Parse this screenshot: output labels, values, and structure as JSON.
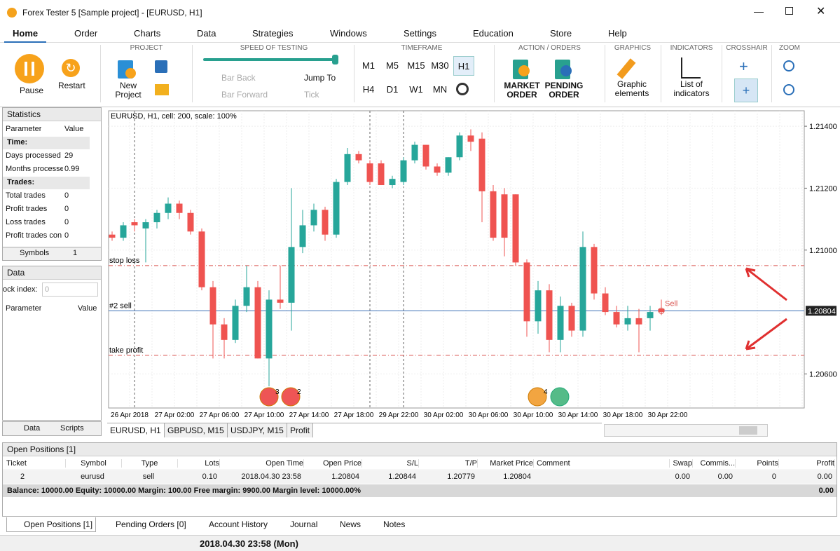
{
  "window": {
    "title": "Forex Tester 5  [Sample project] - [EURUSD, H1]"
  },
  "menu": [
    "Home",
    "Order",
    "Charts",
    "Data",
    "Strategies",
    "Windows",
    "Settings",
    "Education",
    "Store",
    "Help"
  ],
  "ribbon": {
    "pause": "Pause",
    "restart": "Restart",
    "project": {
      "title": "PROJECT",
      "new": "New Project"
    },
    "speed": {
      "title": "SPEED OF TESTING",
      "bar_back": "Bar Back",
      "bar_forward": "Bar Forward",
      "jump_to": "Jump To",
      "tick": "Tick"
    },
    "timeframe": {
      "title": "TIMEFRAME",
      "items": [
        "M1",
        "M5",
        "M15",
        "M30",
        "H1",
        "H4",
        "D1",
        "W1",
        "MN"
      ]
    },
    "action": {
      "title": "ACTION / ORDERS",
      "market": "MARKET ORDER",
      "pending": "PENDING ORDER"
    },
    "graphics": {
      "title": "GRAPHICS",
      "label": "Graphic elements"
    },
    "indicators": {
      "title": "INDICATORS",
      "label": "List of indicators"
    },
    "crosshair": {
      "title": "CROSSHAIR"
    },
    "zoom": {
      "title": "ZOOM"
    }
  },
  "statistics": {
    "title": "Statistics",
    "headers": [
      "Parameter",
      "Value"
    ],
    "rows": [
      [
        "Time:"
      ],
      [
        "Days processed",
        29
      ],
      [
        "Months processe",
        0.99
      ],
      [
        "Trades:"
      ],
      [
        "Total trades",
        0
      ],
      [
        "Profit trades",
        0
      ],
      [
        "Loss trades",
        0
      ],
      [
        "Profit trades con",
        0
      ]
    ],
    "tabs": [
      "Symbols",
      "1"
    ]
  },
  "data_panel": {
    "title": "Data",
    "index_label": "ock index:",
    "index_value": "0",
    "headers": [
      "Parameter",
      "Value"
    ],
    "tabs": [
      "Data",
      "Scripts"
    ]
  },
  "chart": {
    "type": "candlestick",
    "title": "EURUSD, H1, cell: 200, scale: 100%",
    "xlabels": [
      "26 Apr 2018",
      "27 Apr 02:00",
      "27 Apr 06:00",
      "27 Apr 10:00",
      "27 Apr 14:00",
      "27 Apr 18:00",
      "29 Apr 22:00",
      "30 Apr 02:00",
      "30 Apr 06:00",
      "30 Apr 10:00",
      "30 Apr 14:00",
      "30 Apr 18:00",
      "30 Apr 22:00"
    ],
    "ylim": [
      1.2049,
      1.2145
    ],
    "yticks": [
      {
        "value": 1.214,
        "label": "1.21400"
      },
      {
        "value": 1.212,
        "label": "1.21200"
      },
      {
        "value": 1.21,
        "label": "1.21000"
      },
      {
        "value": 1.206,
        "label": "1.20600"
      }
    ],
    "up_color": "#26a69a",
    "down_color": "#ef5350",
    "ohlc": [
      [
        1.2105,
        1.2106,
        1.2103,
        1.2104
      ],
      [
        1.2104,
        1.2109,
        1.2103,
        1.2108
      ],
      [
        1.2109,
        1.211,
        1.2106,
        1.2108
      ],
      [
        1.2107,
        1.211,
        1.2096,
        1.2109
      ],
      [
        1.2109,
        1.2113,
        1.2107,
        1.2112
      ],
      [
        1.2112,
        1.2117,
        1.211,
        1.2115
      ],
      [
        1.2115,
        1.2116,
        1.211,
        1.2112
      ],
      [
        1.2112,
        1.2113,
        1.2105,
        1.2106
      ],
      [
        1.2106,
        1.2107,
        1.2087,
        1.2088
      ],
      [
        1.2088,
        1.209,
        1.2065,
        1.2076
      ],
      [
        1.2076,
        1.2078,
        1.2065,
        1.2071
      ],
      [
        1.2071,
        1.2084,
        1.207,
        1.2082
      ],
      [
        1.2082,
        1.2095,
        1.208,
        1.2088
      ],
      [
        1.2088,
        1.209,
        1.2065,
        1.2065
      ],
      [
        1.2065,
        1.2087,
        1.2056,
        1.2084
      ],
      [
        1.2084,
        1.2095,
        1.2081,
        1.2083
      ],
      [
        1.2083,
        1.212,
        1.2074,
        1.2101
      ],
      [
        1.2101,
        1.2113,
        1.2099,
        1.2108
      ],
      [
        1.2108,
        1.2115,
        1.2106,
        1.2113
      ],
      [
        1.2113,
        1.2114,
        1.2103,
        1.2105
      ],
      [
        1.2105,
        1.2123,
        1.2104,
        1.2122
      ],
      [
        1.2122,
        1.2133,
        1.2121,
        1.2131
      ],
      [
        1.2131,
        1.2132,
        1.2128,
        1.2129
      ],
      [
        1.2128,
        1.2129,
        1.2121,
        1.2122
      ],
      [
        1.2128,
        1.2129,
        1.2121,
        1.2121
      ],
      [
        1.2121,
        1.2124,
        1.212,
        1.2123
      ],
      [
        1.2122,
        1.213,
        1.2121,
        1.2129
      ],
      [
        1.2129,
        1.2135,
        1.2128,
        1.2134
      ],
      [
        1.2134,
        1.2134,
        1.2126,
        1.2127
      ],
      [
        1.2127,
        1.2128,
        1.2124,
        1.2125
      ],
      [
        1.2125,
        1.213,
        1.2124,
        1.213
      ],
      [
        1.213,
        1.2138,
        1.2129,
        1.2137
      ],
      [
        1.2137,
        1.2139,
        1.2132,
        1.2135
      ],
      [
        1.2136,
        1.2138,
        1.2109,
        1.2119
      ],
      [
        1.2119,
        1.2121,
        1.2103,
        1.2104
      ],
      [
        1.2118,
        1.212,
        1.2098,
        1.2104
      ],
      [
        1.2118,
        1.2118,
        1.2095,
        1.2096
      ],
      [
        1.2096,
        1.2097,
        1.2072,
        1.2077
      ],
      [
        1.2077,
        1.209,
        1.2073,
        1.2087
      ],
      [
        1.2087,
        1.2089,
        1.2067,
        1.2071
      ],
      [
        1.2071,
        1.2085,
        1.2067,
        1.2082
      ],
      [
        1.2082,
        1.2083,
        1.2072,
        1.2074
      ],
      [
        1.2074,
        1.2106,
        1.2072,
        1.2101
      ],
      [
        1.2101,
        1.2102,
        1.2084,
        1.2086
      ],
      [
        1.2086,
        1.2088,
        1.2079,
        1.208
      ],
      [
        1.208,
        1.2082,
        1.2075,
        1.2076
      ],
      [
        1.2076,
        1.2082,
        1.2074,
        1.2078
      ],
      [
        1.2078,
        1.2081,
        1.2067,
        1.2076
      ],
      [
        1.2078,
        1.2082,
        1.2074,
        1.208
      ],
      [
        1.2081,
        1.2084,
        1.2079,
        1.208
      ]
    ],
    "levels": [
      {
        "name": "stop loss",
        "value": 1.2095,
        "color": "#d9534f"
      },
      {
        "name": "#2 sell",
        "value": 1.20804,
        "color": "#3b6fb6"
      },
      {
        "name": "take profit",
        "value": 1.2066,
        "color": "#d9534f"
      }
    ],
    "price_label": {
      "value": 1.20804,
      "label": "1.20804"
    },
    "marker": "Sell",
    "flag_counts": [
      "3",
      "2",
      "4"
    ]
  },
  "chart_tabs": [
    "EURUSD, H1",
    "GBPUSD, M15",
    "USDJPY, M15",
    "Profit"
  ],
  "positions": {
    "title": "Open Positions [1]",
    "headers": [
      "Ticket",
      "Symbol",
      "Type",
      "Lots",
      "Open Time",
      "Open Price",
      "S/L",
      "T/P",
      "Market Price",
      "Comment",
      "Swap",
      "Commis...",
      "Points",
      "Profit"
    ],
    "rows": [
      [
        "2",
        "eurusd",
        "sell",
        "0.10",
        "2018.04.30 23:58",
        "1.20804",
        "1.20844",
        "1.20779",
        "1.20804",
        "",
        "0.00",
        "0.00",
        "0",
        "0.00"
      ]
    ],
    "balance": "Balance: 10000.00 Equity: 10000.00 Margin: 100.00 Free margin: 9900.00 Margin level: 10000.00%",
    "balance_profit": "0.00"
  },
  "bottom_tabs": [
    "Open Positions [1]",
    "Pending Orders [0]",
    "Account History",
    "Journal",
    "News",
    "Notes"
  ],
  "status": "2018.04.30 23:58 (Mon)"
}
